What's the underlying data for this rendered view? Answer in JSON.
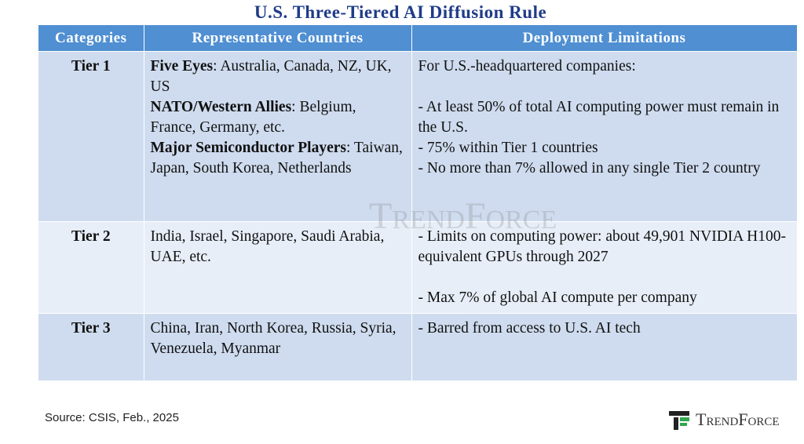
{
  "title": "U.S. Three-Tiered AI Diffusion Rule",
  "table": {
    "headers": [
      "Categories",
      "Representative Countries",
      "Deployment Limitations"
    ],
    "rows": [
      {
        "category": "Tier 1",
        "countries": [
          {
            "strong": "Five Eyes",
            "text": ": Australia, Canada, NZ, UK, US"
          },
          {
            "strong": "NATO/Western Allies",
            "text": ": Belgium, France, Germany, etc."
          },
          {
            "strong": "Major Semiconductor Players",
            "text": ": Taiwan, Japan, South Korea, Netherlands"
          }
        ],
        "limitations": [
          "For U.S.-headquartered companies:",
          "-  At least 50% of total AI computing power must remain in the U.S.",
          "-  75% within Tier 1 countries",
          "-  No more than 7% allowed in any single Tier 2 country"
        ]
      },
      {
        "category": "Tier 2",
        "countries": [
          {
            "text": "India, Israel, Singapore, Saudi Arabia, UAE, etc."
          }
        ],
        "limitations": [
          "-  Limits on computing power: about 49,901 NVIDIA H100-equivalent GPUs through 2027",
          "-  Max 7% of global AI compute per company"
        ]
      },
      {
        "category": "Tier 3",
        "countries": [
          {
            "text": "China, Iran, North Korea, Russia, Syria, Venezuela, Myanmar"
          }
        ],
        "limitations": [
          "-  Barred from access to U.S. AI tech"
        ]
      }
    ]
  },
  "watermark": "TrendForce",
  "source": "Source: CSIS, Feb., 2025",
  "logo": "TrendForce"
}
